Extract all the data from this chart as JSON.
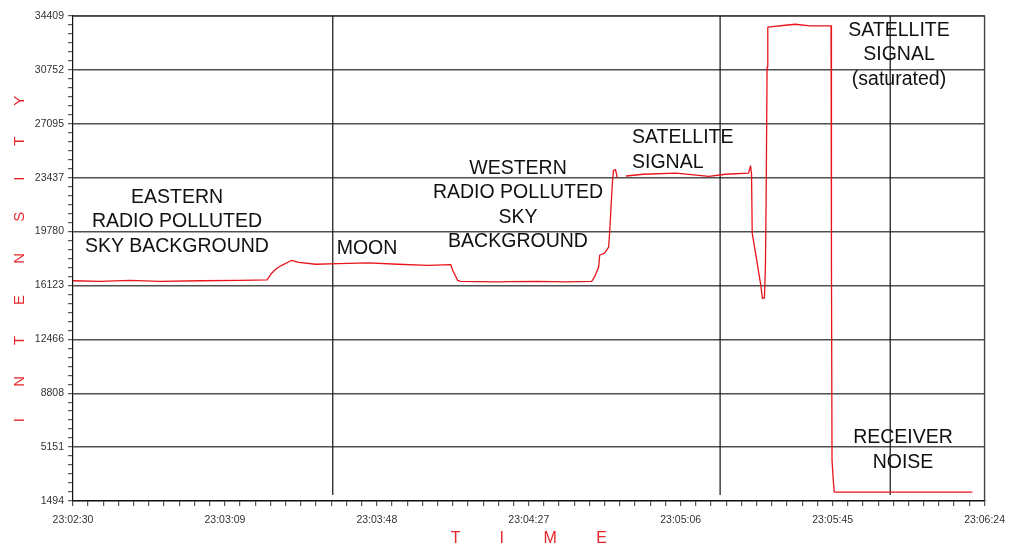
{
  "chart_data": {
    "type": "line",
    "xlabel": "T I M E",
    "ylabel": "I N T E N S I T Y",
    "x": [
      23.04169,
      23.0436,
      23.04572,
      23.04785,
      23.05068,
      23.05351,
      23.0555,
      23.05585,
      23.0562,
      23.05656,
      23.05727,
      23.05776,
      23.05897,
      23.0606,
      23.06272,
      23.06484,
      23.06697,
      23.0686,
      23.06874,
      23.06909,
      23.0693,
      23.07192,
      23.07476,
      23.07688,
      23.07865,
      23.07886,
      23.07915,
      23.07922,
      23.07957,
      23.07986,
      23.07993,
      23.08007,
      23.08014,
      23.08021,
      23.08035,
      23.08047,
      23.08077,
      23.08113,
      23.08234,
      23.08467,
      23.08701,
      23.08821,
      23.08984,
      23.08998,
      23.09005,
      23.0901,
      23.09034,
      23.09069,
      23.09083,
      23.09097,
      23.09104,
      23.09109,
      23.09116,
      23.09121,
      23.09246,
      23.09317,
      23.09423,
      23.09572,
      23.09575,
      23.09579,
      23.09588,
      23.09595,
      23.10023,
      23.10577
    ],
    "series": [
      {
        "color": "#e8141b",
        "values": [
          16440,
          16400,
          16470,
          16400,
          16440,
          16470,
          16500,
          16970,
          17290,
          17490,
          17830,
          17690,
          17560,
          17600,
          17650,
          17560,
          17490,
          17540,
          17150,
          16470,
          16400,
          16370,
          16400,
          16370,
          16400,
          16700,
          17370,
          18170,
          18320,
          18730,
          19660,
          22130,
          23260,
          23940,
          23980,
          23480,
          null,
          23550,
          23670,
          23750,
          23530,
          23670,
          23750,
          24230,
          23710,
          19660,
          18300,
          16270,
          15250,
          15270,
          17370,
          21900,
          30950,
          33660,
          33780,
          33850,
          33740,
          33740,
          17630,
          4250,
          2900,
          2100,
          2100,
          2100
        ]
      }
    ],
    "xlim": [
      23.041667,
      23.106667
    ],
    "ylim": [
      1494,
      34409
    ],
    "xticks": [
      {
        "value": 23.041667,
        "label": "23:02:30"
      },
      {
        "value": 23.04275,
        "label": null
      },
      {
        "value": 23.043833,
        "label": null
      },
      {
        "value": 23.044917,
        "label": null
      },
      {
        "value": 23.046,
        "label": null
      },
      {
        "value": 23.047083,
        "label": null
      },
      {
        "value": 23.048167,
        "label": null
      },
      {
        "value": 23.04925,
        "label": null
      },
      {
        "value": 23.050333,
        "label": null
      },
      {
        "value": 23.051417,
        "label": null
      },
      {
        "value": 23.0525,
        "label": "23:03:09"
      },
      {
        "value": 23.053583,
        "label": null
      },
      {
        "value": 23.054667,
        "label": null
      },
      {
        "value": 23.05575,
        "label": null
      },
      {
        "value": 23.056833,
        "label": null
      },
      {
        "value": 23.057917,
        "label": null
      },
      {
        "value": 23.059,
        "label": null
      },
      {
        "value": 23.060083,
        "label": null
      },
      {
        "value": 23.061167,
        "label": null
      },
      {
        "value": 23.06225,
        "label": null
      },
      {
        "value": 23.063333,
        "label": "23:03:48"
      },
      {
        "value": 23.064417,
        "label": null
      },
      {
        "value": 23.0655,
        "label": null
      },
      {
        "value": 23.066583,
        "label": null
      },
      {
        "value": 23.067667,
        "label": null
      },
      {
        "value": 23.06875,
        "label": null
      },
      {
        "value": 23.069833,
        "label": null
      },
      {
        "value": 23.070917,
        "label": null
      },
      {
        "value": 23.072,
        "label": null
      },
      {
        "value": 23.073083,
        "label": null
      },
      {
        "value": 23.074167,
        "label": "23:04:27"
      },
      {
        "value": 23.07525,
        "label": null
      },
      {
        "value": 23.076333,
        "label": null
      },
      {
        "value": 23.077417,
        "label": null
      },
      {
        "value": 23.0785,
        "label": null
      },
      {
        "value": 23.079583,
        "label": null
      },
      {
        "value": 23.080667,
        "label": null
      },
      {
        "value": 23.08175,
        "label": null
      },
      {
        "value": 23.082833,
        "label": null
      },
      {
        "value": 23.083917,
        "label": null
      },
      {
        "value": 23.085,
        "label": "23:05:06"
      },
      {
        "value": 23.086083,
        "label": null
      },
      {
        "value": 23.087167,
        "label": null
      },
      {
        "value": 23.08825,
        "label": null
      },
      {
        "value": 23.089333,
        "label": null
      },
      {
        "value": 23.090417,
        "label": null
      },
      {
        "value": 23.0915,
        "label": null
      },
      {
        "value": 23.092583,
        "label": null
      },
      {
        "value": 23.093667,
        "label": null
      },
      {
        "value": 23.09475,
        "label": null
      },
      {
        "value": 23.095833,
        "label": "23:05:45"
      },
      {
        "value": 23.096917,
        "label": null
      },
      {
        "value": 23.098,
        "label": null
      },
      {
        "value": 23.099083,
        "label": null
      },
      {
        "value": 23.100167,
        "label": null
      },
      {
        "value": 23.10125,
        "label": null
      },
      {
        "value": 23.102333,
        "label": null
      },
      {
        "value": 23.103417,
        "label": null
      },
      {
        "value": 23.1045,
        "label": null
      },
      {
        "value": 23.105583,
        "label": null
      },
      {
        "value": 23.106667,
        "label": "23:06:24"
      }
    ],
    "yticks": [
      1494,
      {
        "value": 2104,
        "label": null
      },
      {
        "value": 2713,
        "label": null
      },
      {
        "value": 3323,
        "label": null
      },
      {
        "value": 3932,
        "label": null
      },
      {
        "value": 4542,
        "label": null
      },
      5151,
      {
        "value": 5761,
        "label": null
      },
      {
        "value": 6370,
        "label": null
      },
      {
        "value": 6980,
        "label": null
      },
      {
        "value": 7589,
        "label": null
      },
      {
        "value": 8199,
        "label": null
      },
      8808,
      {
        "value": 9418,
        "label": null
      },
      {
        "value": 10027,
        "label": null
      },
      {
        "value": 10637,
        "label": null
      },
      {
        "value": 11247,
        "label": null
      },
      {
        "value": 11856,
        "label": null
      },
      12466,
      {
        "value": 13076,
        "label": null
      },
      {
        "value": 13685,
        "label": null
      },
      {
        "value": 14295,
        "label": null
      },
      {
        "value": 14904,
        "label": null
      },
      {
        "value": 15514,
        "label": null
      },
      16123,
      {
        "value": 16733,
        "label": null
      },
      {
        "value": 17342,
        "label": null
      },
      {
        "value": 17952,
        "label": null
      },
      {
        "value": 18561,
        "label": null
      },
      {
        "value": 19171,
        "label": null
      },
      19780,
      {
        "value": 20390,
        "label": null
      },
      {
        "value": 20999,
        "label": null
      },
      {
        "value": 21609,
        "label": null
      },
      {
        "value": 22218,
        "label": null
      },
      {
        "value": 22828,
        "label": null
      },
      23437,
      {
        "value": 24047,
        "label": null
      },
      {
        "value": 24656,
        "label": null
      },
      {
        "value": 25266,
        "label": null
      },
      {
        "value": 25876,
        "label": null
      },
      {
        "value": 26485,
        "label": null
      },
      27095,
      {
        "value": 27705,
        "label": null
      },
      {
        "value": 28314,
        "label": null
      },
      {
        "value": 28924,
        "label": null
      },
      {
        "value": 29533,
        "label": null
      },
      {
        "value": 30143,
        "label": null
      },
      30752,
      {
        "value": 31362,
        "label": null
      },
      {
        "value": 31971,
        "label": null
      },
      {
        "value": 32581,
        "label": null
      },
      {
        "value": 33190,
        "label": null
      },
      {
        "value": 33800,
        "label": null
      },
      34409
    ],
    "grid": "y",
    "marker": "none",
    "ref_lines": [
      {
        "axis": "x",
        "value": 23.06019,
        "color": "#111111"
      },
      {
        "axis": "x",
        "value": 23.08781,
        "color": "#111111"
      },
      {
        "axis": "x",
        "value": 23.09994,
        "color": "#111111"
      }
    ],
    "annotations": [
      "EASTERN\nRADIO POLLUTED\nSKY BACKGROUND",
      "MOON",
      "WESTERN\nRADIO POLLUTED\nSKY\nBACKGROUND",
      "SATELLITE\nSIGNAL",
      "SATELLITE\nSIGNAL\n(saturated)",
      "RECEIVER\nNOISE"
    ]
  }
}
